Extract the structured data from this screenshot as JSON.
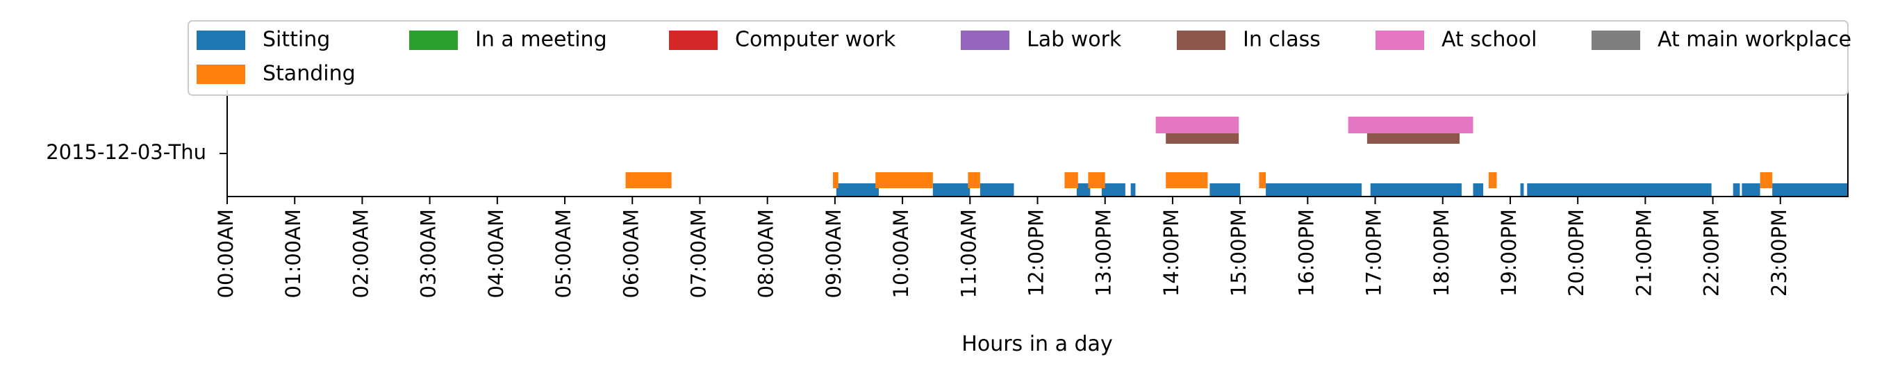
{
  "chart_data": {
    "type": "timeline",
    "xlabel": "Hours in a day",
    "ylabel": "",
    "xlim": [
      0,
      24
    ],
    "y_category": "2015-12-03-Thu",
    "x_tick_labels": [
      "00:00AM",
      "01:00AM",
      "02:00AM",
      "03:00AM",
      "04:00AM",
      "05:00AM",
      "06:00AM",
      "07:00AM",
      "08:00AM",
      "09:00AM",
      "10:00AM",
      "11:00AM",
      "12:00PM",
      "13:00PM",
      "14:00PM",
      "15:00PM",
      "16:00PM",
      "17:00PM",
      "18:00PM",
      "19:00PM",
      "20:00PM",
      "21:00PM",
      "22:00PM",
      "23:00PM"
    ],
    "legend": {
      "placement": "top",
      "entries": [
        {
          "name": "Sitting",
          "color": "#1f77b4"
        },
        {
          "name": "In a meeting",
          "color": "#2ca02c"
        },
        {
          "name": "Computer work",
          "color": "#d62728"
        },
        {
          "name": "Lab work",
          "color": "#9467bd"
        },
        {
          "name": "In class",
          "color": "#8c564b"
        },
        {
          "name": "At school",
          "color": "#e377c2"
        },
        {
          "name": "At main workplace",
          "color": "#7f7f7f"
        },
        {
          "name": "Standing",
          "color": "#ff7f0e"
        }
      ]
    },
    "series": [
      {
        "name": "Sitting",
        "color": "#1f77b4",
        "intervals": [
          [
            9.02,
            9.65
          ],
          [
            10.45,
            11.0
          ],
          [
            11.15,
            11.65
          ],
          [
            12.58,
            12.78
          ],
          [
            12.95,
            13.3
          ],
          [
            13.38,
            13.45
          ],
          [
            14.55,
            15.0
          ],
          [
            15.38,
            16.8
          ],
          [
            16.93,
            18.28
          ],
          [
            18.45,
            18.6
          ],
          [
            19.15,
            19.2
          ],
          [
            19.25,
            21.98
          ],
          [
            22.3,
            22.4
          ],
          [
            22.43,
            22.7
          ],
          [
            22.88,
            24.0
          ]
        ]
      },
      {
        "name": "Standing",
        "color": "#ff7f0e",
        "intervals": [
          [
            5.9,
            6.58
          ],
          [
            8.97,
            9.05
          ],
          [
            9.6,
            10.45
          ],
          [
            10.97,
            11.15
          ],
          [
            12.4,
            12.6
          ],
          [
            12.75,
            13.0
          ],
          [
            13.9,
            14.52
          ],
          [
            15.28,
            15.38
          ],
          [
            18.68,
            18.8
          ],
          [
            22.7,
            22.88
          ]
        ]
      },
      {
        "name": "In class",
        "color": "#8c564b",
        "intervals": [
          [
            13.9,
            14.98
          ],
          [
            16.88,
            18.25
          ]
        ]
      },
      {
        "name": "At school",
        "color": "#e377c2",
        "intervals": [
          [
            13.75,
            14.98
          ],
          [
            16.6,
            18.45
          ]
        ]
      }
    ]
  }
}
